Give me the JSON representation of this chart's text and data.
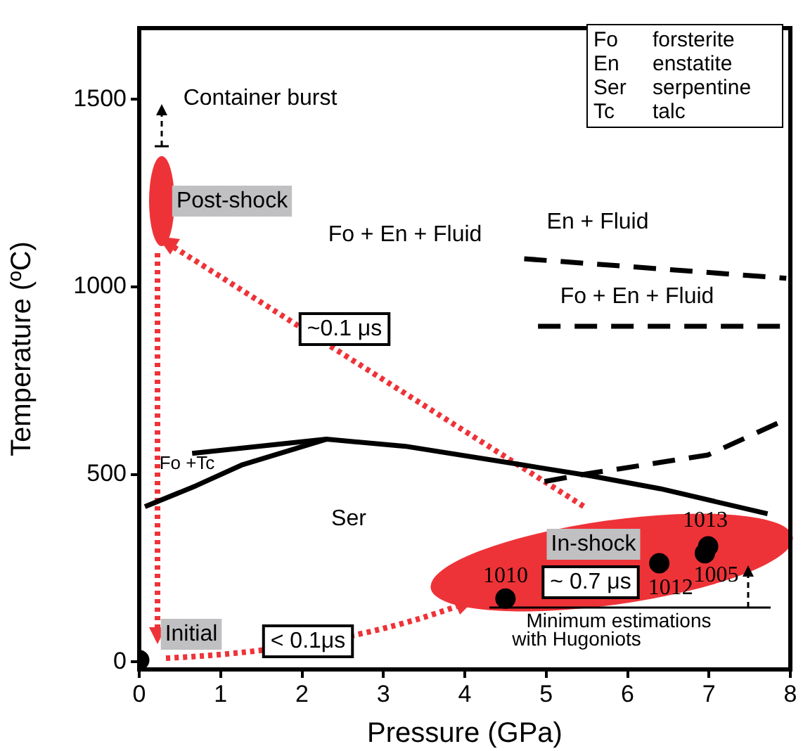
{
  "chart_data": {
    "type": "line",
    "xlabel": "Pressure (GPa)",
    "ylabel": "Temperature (ºC)",
    "xlim": [
      0,
      8
    ],
    "ylim": [
      -20,
      1690
    ],
    "xticks": [
      0,
      1,
      2,
      3,
      4,
      5,
      6,
      7,
      8
    ],
    "yticks": [
      0,
      500,
      1000,
      1500
    ],
    "grid": false,
    "legend": false,
    "series": [
      {
        "color": "#000000",
        "line_style": "solid",
        "marker": "none",
        "x": [
          0.07,
          0.7,
          1.27,
          2.3,
          3.27,
          4.69,
          5.55,
          6.4,
          7.72
        ],
        "values": [
          414,
          470,
          526,
          594,
          575,
          526,
          496,
          462,
          395
        ]
      },
      {
        "color": "#000000",
        "line_style": "solid",
        "marker": "none",
        "x": [
          0.65,
          2.3
        ],
        "values": [
          556,
          594
        ]
      },
      {
        "color": "#000000",
        "line_style": "dashed",
        "marker": "none",
        "x": [
          4.98,
          5.45,
          5.9,
          6.99,
          7.95
        ],
        "values": [
          481,
          500,
          515,
          552,
          647
        ]
      },
      {
        "color": "#000000",
        "line_style": "dashed",
        "marker": "none",
        "x": [
          4.73,
          7.95
        ],
        "values": [
          1075,
          1023
        ]
      },
      {
        "color": "#000000",
        "line_style": "dashed",
        "marker": "none",
        "x": [
          4.9,
          8
        ],
        "values": [
          895,
          895
        ]
      },
      {
        "type": "scatter",
        "color": "#000000",
        "marker": "circle",
        "x": [
          4.5,
          6.39,
          6.99,
          6.95
        ],
        "values": [
          169,
          263,
          308,
          290
        ]
      },
      {
        "type": "scatter",
        "color": "#000000",
        "marker": "circle",
        "x": [
          0
        ],
        "values": [
          5
        ]
      }
    ],
    "annotations": [
      "Container burst",
      "Post-shock",
      "Fo + En + Fluid",
      "En + Fluid",
      "Fo + En + Fluid",
      "~0.1 μs",
      "Fo +Tc",
      "Ser",
      "In-shock",
      "~ 0.7 μs",
      "Initial",
      "< 0.1μs",
      "Minimum estimations",
      "with Hugoniots",
      "Fo forsterite",
      "En enstatite",
      "Ser serpentine",
      "Tc talc",
      {
        "text": "1010",
        "x": 4.5,
        "y": 169
      },
      {
        "text": "1012",
        "x": 6.39,
        "y": 263
      },
      {
        "text": "1013",
        "x": 6.99,
        "y": 308
      },
      {
        "text": "1005",
        "x": 6.95,
        "y": 290
      }
    ]
  }
}
